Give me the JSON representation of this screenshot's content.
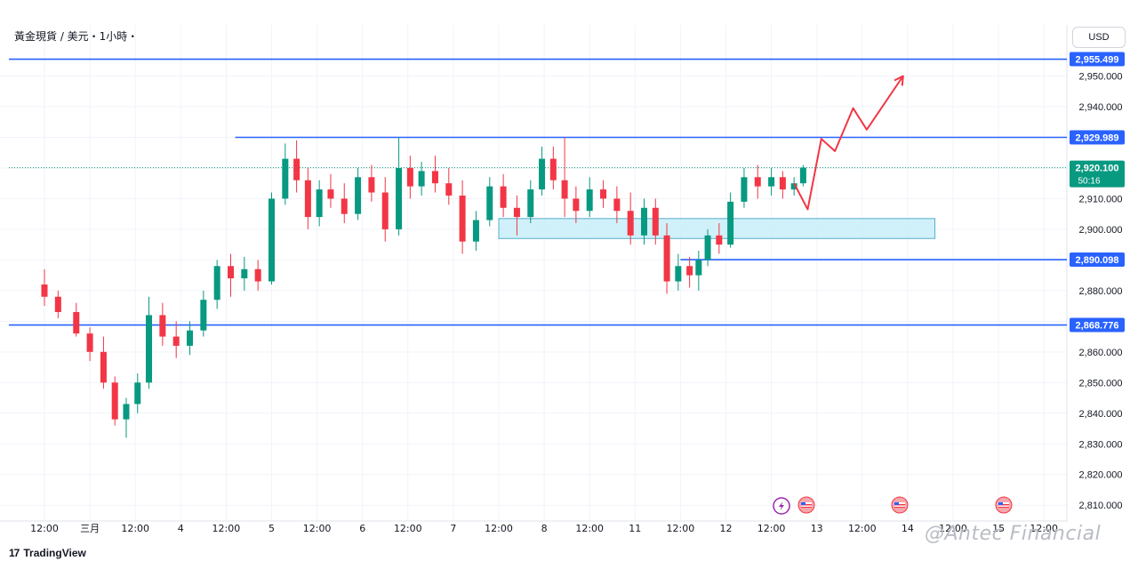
{
  "header": {
    "title": "黃金現貨 / 美元・1小時・"
  },
  "toolbar": {
    "currency_label": "USD"
  },
  "branding": {
    "tradingview_label": "TradingView",
    "tradingview_mark": "17"
  },
  "watermark": {
    "text": "@Antec Financial"
  },
  "colors": {
    "up": "#089981",
    "down": "#f23645",
    "level_line": "#2962ff",
    "last_price": "#089981",
    "zone_fill": "#c8eef8",
    "zone_stroke": "#55aecc",
    "projection": "#f23645",
    "grid": "#f0f3fa",
    "axis_text": "#131722"
  },
  "chart_data": {
    "type": "candlestick",
    "title": "黃金現貨 / 美元・1小時・",
    "currency": "USD",
    "ylim": [
      2805,
      2962
    ],
    "y_ticks": [
      2810,
      2820,
      2830,
      2840,
      2850,
      2860,
      2870,
      2880,
      2890,
      2900,
      2910,
      2920,
      2930,
      2940,
      2950
    ],
    "y_tick_labels": [
      "2,810.000",
      "2,820.000",
      "2,830.000",
      "2,840.000",
      "2,850.000",
      "2,860.000",
      "2,870.000",
      "2,880.000",
      "2,890.000",
      "2,900.000",
      "2,910.000",
      "2,920.000",
      "2,930.000",
      "2,940.000",
      "2,950.000"
    ],
    "x_ticks": [
      "12:00",
      "三月",
      "12:00",
      "4",
      "12:00",
      "5",
      "12:00",
      "6",
      "12:00",
      "7",
      "12:00",
      "8",
      "12:00",
      "11",
      "12:00",
      "12",
      "12:00",
      "13",
      "12:00",
      "14",
      "12:00",
      "15",
      "12:00"
    ],
    "levels": [
      {
        "value": 2955.499,
        "label": "2,955.499",
        "start_tick": 0
      },
      {
        "value": 2929.989,
        "label": "2,929.989",
        "start_tick": 4.2
      },
      {
        "value": 2890.098,
        "label": "2,890.098",
        "start_tick": 14
      },
      {
        "value": 2868.776,
        "label": "2,868.776",
        "start_tick": 0
      }
    ],
    "last_price": {
      "value": 2920.1,
      "label": "2,920.100",
      "countdown": "50:16"
    },
    "zone": {
      "low": 2897,
      "high": 2903.5,
      "start_tick": 10,
      "end_tick": 19.6
    },
    "projection_path": [
      [
        16.5,
        2915
      ],
      [
        16.8,
        2906.5
      ],
      [
        17.1,
        2929.5
      ],
      [
        17.4,
        2925.5
      ],
      [
        17.8,
        2939.5
      ],
      [
        18.1,
        2932.5
      ],
      [
        18.9,
        2950
      ]
    ],
    "candles": [
      {
        "t": 0,
        "o": 2882,
        "h": 2887,
        "l": 2875,
        "c": 2878
      },
      {
        "t": 0.3,
        "o": 2878,
        "h": 2880,
        "l": 2871,
        "c": 2873
      },
      {
        "t": 0.7,
        "o": 2873,
        "h": 2876,
        "l": 2865,
        "c": 2866
      },
      {
        "t": 1.0,
        "o": 2866,
        "h": 2868,
        "l": 2857,
        "c": 2860
      },
      {
        "t": 1.3,
        "o": 2860,
        "h": 2865,
        "l": 2848,
        "c": 2850
      },
      {
        "t": 1.55,
        "o": 2850,
        "h": 2852,
        "l": 2836,
        "c": 2838
      },
      {
        "t": 1.8,
        "o": 2838,
        "h": 2845,
        "l": 2832,
        "c": 2843
      },
      {
        "t": 2.05,
        "o": 2843,
        "h": 2853,
        "l": 2840,
        "c": 2850
      },
      {
        "t": 2.3,
        "o": 2850,
        "h": 2878,
        "l": 2848,
        "c": 2872
      },
      {
        "t": 2.6,
        "o": 2872,
        "h": 2876,
        "l": 2862,
        "c": 2865
      },
      {
        "t": 2.9,
        "o": 2865,
        "h": 2870,
        "l": 2858,
        "c": 2862
      },
      {
        "t": 3.2,
        "o": 2862,
        "h": 2870,
        "l": 2859,
        "c": 2867
      },
      {
        "t": 3.5,
        "o": 2867,
        "h": 2880,
        "l": 2865,
        "c": 2877
      },
      {
        "t": 3.8,
        "o": 2877,
        "h": 2890,
        "l": 2874,
        "c": 2888
      },
      {
        "t": 4.1,
        "o": 2888,
        "h": 2892,
        "l": 2878,
        "c": 2884
      },
      {
        "t": 4.4,
        "o": 2884,
        "h": 2891,
        "l": 2880,
        "c": 2887
      },
      {
        "t": 4.7,
        "o": 2887,
        "h": 2890,
        "l": 2880,
        "c": 2883
      },
      {
        "t": 5.0,
        "o": 2883,
        "h": 2912,
        "l": 2882,
        "c": 2910
      },
      {
        "t": 5.3,
        "o": 2910,
        "h": 2928,
        "l": 2908,
        "c": 2923
      },
      {
        "t": 5.55,
        "o": 2923,
        "h": 2929,
        "l": 2912,
        "c": 2916
      },
      {
        "t": 5.8,
        "o": 2916,
        "h": 2920,
        "l": 2900,
        "c": 2904
      },
      {
        "t": 6.05,
        "o": 2904,
        "h": 2916,
        "l": 2901,
        "c": 2913
      },
      {
        "t": 6.3,
        "o": 2913,
        "h": 2918,
        "l": 2907,
        "c": 2910
      },
      {
        "t": 6.6,
        "o": 2910,
        "h": 2915,
        "l": 2902,
        "c": 2905
      },
      {
        "t": 6.9,
        "o": 2905,
        "h": 2920,
        "l": 2903,
        "c": 2917
      },
      {
        "t": 7.2,
        "o": 2917,
        "h": 2921,
        "l": 2909,
        "c": 2912
      },
      {
        "t": 7.5,
        "o": 2912,
        "h": 2917,
        "l": 2896,
        "c": 2900
      },
      {
        "t": 7.8,
        "o": 2900,
        "h": 2930,
        "l": 2898,
        "c": 2920
      },
      {
        "t": 8.05,
        "o": 2920,
        "h": 2924,
        "l": 2910,
        "c": 2914
      },
      {
        "t": 8.3,
        "o": 2914,
        "h": 2922,
        "l": 2911,
        "c": 2919
      },
      {
        "t": 8.6,
        "o": 2919,
        "h": 2924,
        "l": 2912,
        "c": 2915
      },
      {
        "t": 8.9,
        "o": 2915,
        "h": 2920,
        "l": 2908,
        "c": 2911
      },
      {
        "t": 9.2,
        "o": 2911,
        "h": 2916,
        "l": 2892,
        "c": 2896
      },
      {
        "t": 9.5,
        "o": 2896,
        "h": 2906,
        "l": 2893,
        "c": 2903
      },
      {
        "t": 9.8,
        "o": 2903,
        "h": 2917,
        "l": 2901,
        "c": 2914
      },
      {
        "t": 10.1,
        "o": 2914,
        "h": 2918,
        "l": 2904,
        "c": 2907
      },
      {
        "t": 10.4,
        "o": 2907,
        "h": 2911,
        "l": 2898,
        "c": 2904
      },
      {
        "t": 10.7,
        "o": 2904,
        "h": 2916,
        "l": 2902,
        "c": 2913
      },
      {
        "t": 10.95,
        "o": 2913,
        "h": 2927,
        "l": 2911,
        "c": 2923
      },
      {
        "t": 11.2,
        "o": 2923,
        "h": 2927,
        "l": 2913,
        "c": 2916
      },
      {
        "t": 11.45,
        "o": 2916,
        "h": 2930,
        "l": 2904,
        "c": 2910
      },
      {
        "t": 11.7,
        "o": 2910,
        "h": 2914,
        "l": 2902,
        "c": 2906
      },
      {
        "t": 12.0,
        "o": 2906,
        "h": 2917,
        "l": 2904,
        "c": 2913
      },
      {
        "t": 12.3,
        "o": 2913,
        "h": 2916,
        "l": 2907,
        "c": 2910
      },
      {
        "t": 12.6,
        "o": 2910,
        "h": 2914,
        "l": 2902,
        "c": 2906
      },
      {
        "t": 12.9,
        "o": 2906,
        "h": 2912,
        "l": 2895,
        "c": 2898
      },
      {
        "t": 13.2,
        "o": 2898,
        "h": 2910,
        "l": 2895,
        "c": 2907
      },
      {
        "t": 13.45,
        "o": 2907,
        "h": 2910,
        "l": 2895,
        "c": 2898
      },
      {
        "t": 13.7,
        "o": 2898,
        "h": 2902,
        "l": 2879,
        "c": 2883
      },
      {
        "t": 13.95,
        "o": 2883,
        "h": 2892,
        "l": 2880,
        "c": 2888
      },
      {
        "t": 14.2,
        "o": 2888,
        "h": 2891,
        "l": 2881,
        "c": 2885
      },
      {
        "t": 14.4,
        "o": 2885,
        "h": 2893,
        "l": 2880,
        "c": 2890
      },
      {
        "t": 14.6,
        "o": 2890,
        "h": 2900,
        "l": 2888,
        "c": 2898
      },
      {
        "t": 14.85,
        "o": 2898,
        "h": 2902,
        "l": 2892,
        "c": 2895
      },
      {
        "t": 15.1,
        "o": 2895,
        "h": 2912,
        "l": 2894,
        "c": 2909
      },
      {
        "t": 15.4,
        "o": 2909,
        "h": 2920,
        "l": 2907,
        "c": 2917
      },
      {
        "t": 15.7,
        "o": 2917,
        "h": 2921,
        "l": 2910,
        "c": 2914
      },
      {
        "t": 16.0,
        "o": 2914,
        "h": 2920,
        "l": 2911,
        "c": 2917
      },
      {
        "t": 16.25,
        "o": 2917,
        "h": 2919,
        "l": 2910,
        "c": 2913
      },
      {
        "t": 16.5,
        "o": 2913,
        "h": 2917,
        "l": 2911,
        "c": 2915
      },
      {
        "t": 16.7,
        "o": 2915,
        "h": 2921,
        "l": 2914,
        "c": 2920.1
      }
    ]
  }
}
